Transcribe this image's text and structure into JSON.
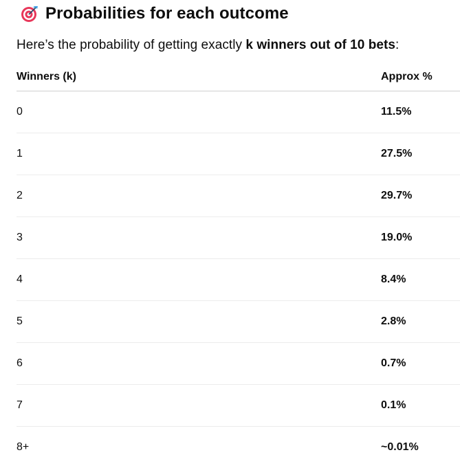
{
  "heading": {
    "title": "Probabilities for each outcome",
    "icon": "direct-hit-icon"
  },
  "intro": {
    "before": "Here’s the probability of getting exactly ",
    "bold": "k winners out of 10 bets",
    "after": ":"
  },
  "table": {
    "headers": [
      "Winners (k)",
      "Approx %"
    ],
    "rows": [
      {
        "k": "0",
        "pct": "11.5%"
      },
      {
        "k": "1",
        "pct": "27.5%"
      },
      {
        "k": "2",
        "pct": "29.7%"
      },
      {
        "k": "3",
        "pct": "19.0%"
      },
      {
        "k": "4",
        "pct": "8.4%"
      },
      {
        "k": "5",
        "pct": "2.8%"
      },
      {
        "k": "6",
        "pct": "0.7%"
      },
      {
        "k": "7",
        "pct": "0.1%"
      },
      {
        "k": "8+",
        "pct": "~0.01%"
      }
    ]
  },
  "colors": {
    "text": "#0d0d0d",
    "target_red": "#e8375a",
    "dart_blue": "#3aa0e8"
  }
}
